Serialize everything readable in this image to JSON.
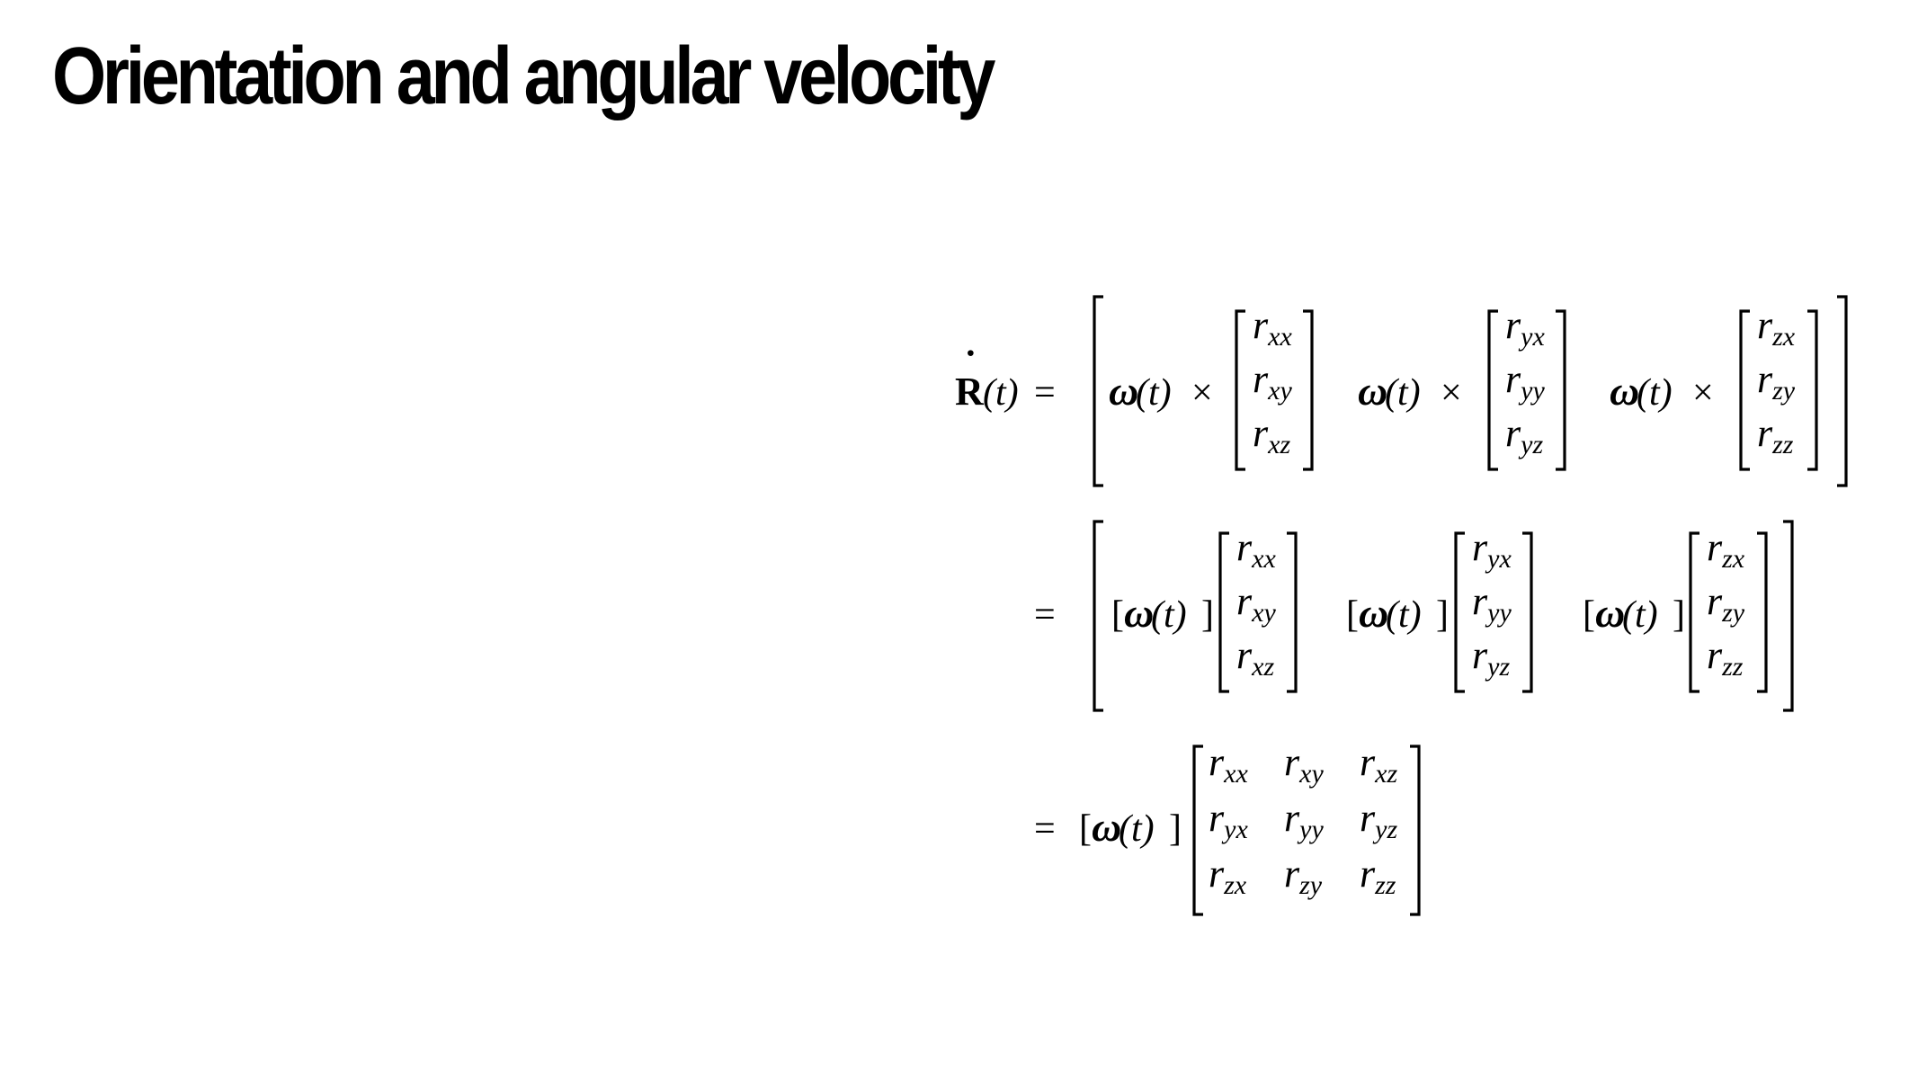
{
  "slide": {
    "title": "Orientation and angular velocity"
  },
  "equation": {
    "lhs": {
      "symbol": "R",
      "dot": "˙",
      "arg": "(t)"
    },
    "equals": "=",
    "omega": "ω",
    "arg_t": "(t)",
    "times": "×",
    "bracket_open": "[",
    "bracket_close": "]",
    "r": "r",
    "columns": [
      [
        "xx",
        "xy",
        "xz"
      ],
      [
        "yx",
        "yy",
        "yz"
      ],
      [
        "zx",
        "zy",
        "zz"
      ]
    ],
    "matrix_rows": [
      [
        "xx",
        "xy",
        "xz"
      ],
      [
        "yx",
        "yy",
        "yz"
      ],
      [
        "zx",
        "zy",
        "zz"
      ]
    ]
  }
}
